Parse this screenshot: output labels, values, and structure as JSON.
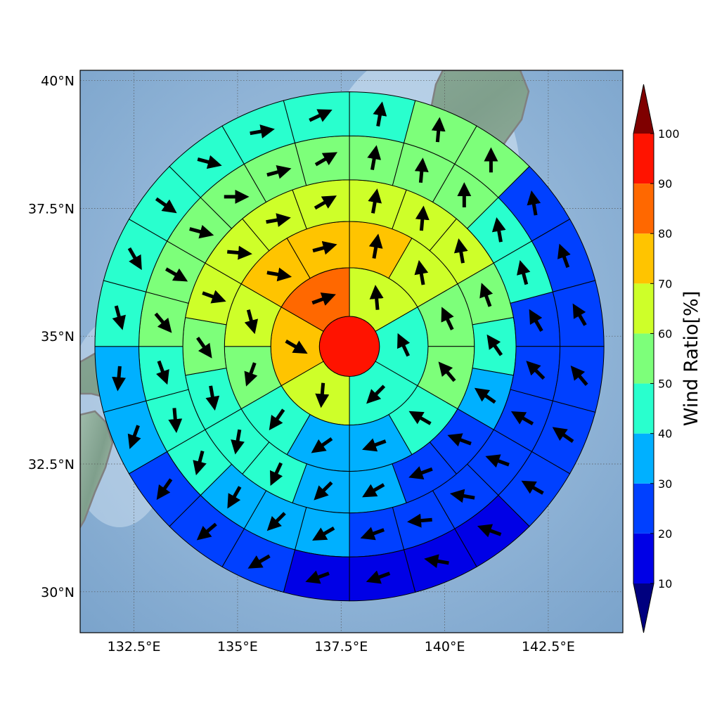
{
  "chart_data": {
    "type": "heatmap",
    "description_kind": "polar-sector wind ratio map with wind direction arrows",
    "title": "",
    "x_axis": {
      "range": [
        131.2,
        144.3
      ],
      "ticks": [
        "132.5°E",
        "135°E",
        "137.5°E",
        "140°E",
        "142.5°E"
      ],
      "tick_values": [
        132.5,
        135,
        137.5,
        140,
        142.5
      ]
    },
    "y_axis": {
      "range": [
        29.2,
        40.2
      ],
      "ticks": [
        "30°N",
        "32.5°N",
        "35°N",
        "37.5°N",
        "40°N"
      ],
      "tick_values": [
        30,
        32.5,
        35,
        37.5,
        40
      ]
    },
    "grid": "dotted",
    "center": {
      "lon": 137.7,
      "lat": 34.8
    },
    "ring_radii_deg": [
      0.65,
      1.7,
      2.7,
      3.6,
      4.55,
      5.5
    ],
    "sectors_per_ring": [
      1,
      6,
      12,
      18,
      24,
      24
    ],
    "ratios": [
      [
        90
      ],
      [
        60,
        40,
        40,
        60,
        70,
        80
      ],
      [
        70,
        60,
        50,
        50,
        40,
        30,
        30,
        40,
        50,
        60,
        70,
        70
      ],
      [
        60,
        60,
        60,
        50,
        40,
        30,
        20,
        20,
        30,
        30,
        40,
        40,
        40,
        50,
        60,
        60,
        60,
        60
      ],
      [
        50,
        50,
        50,
        40,
        40,
        20,
        20,
        20,
        20,
        20,
        20,
        20,
        30,
        30,
        30,
        40,
        40,
        40,
        50,
        50,
        50,
        50,
        50,
        50
      ],
      [
        40,
        50,
        50,
        20,
        20,
        20,
        20,
        20,
        20,
        10,
        10,
        10,
        10,
        20,
        20,
        20,
        30,
        30,
        40,
        40,
        40,
        40,
        40,
        40
      ]
    ],
    "arrow_angles_deg": [
      [],
      [
        -5,
        -25,
        225,
        185,
        120,
        70
      ],
      [
        10,
        -10,
        -25,
        -40,
        -60,
        250,
        235,
        215,
        200,
        165,
        100,
        75
      ],
      [
        10,
        5,
        -10,
        -20,
        -35,
        -55,
        -70,
        -110,
        240,
        225,
        205,
        190,
        170,
        145,
        110,
        95,
        80,
        60
      ],
      [
        10,
        5,
        0,
        -10,
        -15,
        -30,
        -45,
        -60,
        -70,
        -80,
        -95,
        250,
        240,
        225,
        210,
        195,
        175,
        160,
        140,
        120,
        105,
        90,
        75,
        60
      ],
      [
        10,
        5,
        0,
        -10,
        -20,
        -30,
        -40,
        -55,
        -60,
        -70,
        -80,
        -110,
        250,
        240,
        230,
        215,
        200,
        185,
        165,
        150,
        125,
        105,
        80,
        65
      ]
    ],
    "colorbar": {
      "label": "Wind Ratio[%]",
      "ticks": [
        "10",
        "20",
        "30",
        "40",
        "50",
        "60",
        "70",
        "80",
        "90",
        "100"
      ],
      "tick_values": [
        10,
        20,
        30,
        40,
        50,
        60,
        70,
        80,
        90,
        100
      ],
      "below_color": "#00007f",
      "above_color": "#7f0000",
      "bins": [
        {
          "from": 10,
          "to": 20,
          "color": "#0000e6"
        },
        {
          "from": 20,
          "to": 30,
          "color": "#0040ff"
        },
        {
          "from": 30,
          "to": 40,
          "color": "#00b0ff"
        },
        {
          "from": 40,
          "to": 50,
          "color": "#29ffce"
        },
        {
          "from": 50,
          "to": 60,
          "color": "#7dff7a"
        },
        {
          "from": 60,
          "to": 70,
          "color": "#ceff29"
        },
        {
          "from": 70,
          "to": 80,
          "color": "#ffc400"
        },
        {
          "from": 80,
          "to": 90,
          "color": "#ff6800"
        },
        {
          "from": 90,
          "to": 100,
          "color": "#ff1300"
        }
      ]
    },
    "colors": {
      "sea": "#8fb6d8",
      "land": "#8fae9e",
      "coast": "#808080",
      "arrow": "#000000",
      "cell_edge": "#000000"
    }
  }
}
